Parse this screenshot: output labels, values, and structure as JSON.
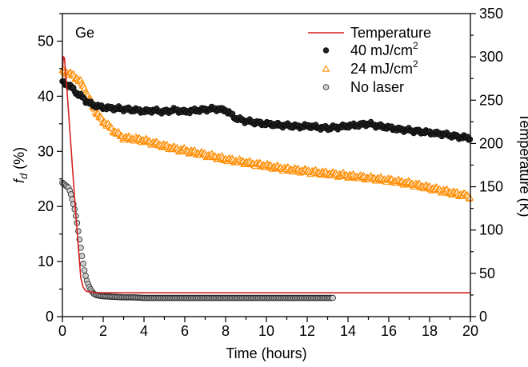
{
  "chart_data": {
    "type": "scatter",
    "annotation": "Ge",
    "xlabel": "Time (hours)",
    "ylabel_left": {
      "main": "f",
      "sub": "d",
      "rest": " (%)"
    },
    "ylabel_right": "Temperature (K)",
    "xlim": [
      0,
      20
    ],
    "ylim_left": [
      0,
      55
    ],
    "ylim_right": [
      0,
      350
    ],
    "xticks": [
      0,
      2,
      4,
      6,
      8,
      10,
      12,
      14,
      16,
      18,
      20
    ],
    "yticks_left": [
      0,
      10,
      20,
      30,
      40,
      50
    ],
    "yticks_right": [
      0,
      50,
      100,
      150,
      200,
      250,
      300,
      350
    ],
    "grid": false,
    "legend_position": "top-right",
    "legend": [
      {
        "label": "Temperature",
        "base": "Temperature",
        "sup": ""
      },
      {
        "label": "40 mJ/cm2",
        "base": "40 mJ/cm",
        "sup": "2"
      },
      {
        "label": "24 mJ/cm2",
        "base": "24 mJ/cm",
        "sup": "2"
      },
      {
        "label": "No laser",
        "base": "No laser",
        "sup": ""
      }
    ],
    "colors": {
      "temperature": "#d62020",
      "s40": "#222222",
      "s24": "#ff8c00",
      "nolaser": "#aaaaaa"
    },
    "series": [
      {
        "key": "temperature",
        "axis": "right",
        "style": "line",
        "x": [
          0,
          0.05,
          0.1,
          0.2,
          0.35,
          0.5,
          0.65,
          0.8,
          0.9,
          1.0,
          1.1,
          1.2,
          1.5,
          2,
          5,
          10,
          15,
          20
        ],
        "y": [
          285,
          300,
          299,
          270,
          220,
          170,
          120,
          75,
          45,
          35,
          31,
          29,
          28,
          27.5,
          27.5,
          27.5,
          27.5,
          27.5
        ]
      },
      {
        "key": "s40",
        "axis": "left",
        "style": "filled-circle",
        "x": [
          0,
          0.2,
          0.4,
          0.6,
          0.8,
          1.0,
          1.2,
          1.4,
          1.6,
          1.8,
          2.0,
          2.5,
          3,
          3.5,
          4,
          4.5,
          5,
          5.5,
          6,
          6.5,
          7,
          7.5,
          8,
          8.5,
          9,
          9.5,
          10,
          10.5,
          11,
          11.5,
          12,
          12.5,
          13,
          13.5,
          14,
          14.5,
          15,
          15.5,
          16,
          16.5,
          17,
          17.5,
          18,
          18.5,
          19,
          19.5,
          20
        ],
        "y": [
          42.5,
          42.2,
          41.8,
          41,
          40.2,
          39.8,
          39,
          38.6,
          38.3,
          38.1,
          38,
          37.8,
          37.7,
          37.5,
          37.3,
          37.4,
          37.2,
          37.5,
          37.2,
          37.4,
          37.6,
          37.7,
          37.5,
          36,
          35.5,
          35.2,
          35,
          34.8,
          34.7,
          34.5,
          34.6,
          34.4,
          34.2,
          34.4,
          34.6,
          34.8,
          35,
          34.6,
          34.3,
          34.0,
          33.8,
          33.6,
          33.4,
          33.2,
          32.9,
          32.6,
          32.4
        ]
      },
      {
        "key": "s24",
        "axis": "left",
        "style": "open-triangle",
        "x": [
          0,
          0.2,
          0.4,
          0.6,
          0.8,
          1.0,
          1.2,
          1.4,
          1.6,
          1.8,
          2.0,
          2.3,
          2.6,
          3.0,
          3.5,
          4,
          4.5,
          5,
          5.5,
          6,
          6.5,
          7,
          7.5,
          8,
          8.5,
          9,
          9.5,
          10,
          10.5,
          11,
          11.5,
          12,
          12.5,
          13,
          13.5,
          14,
          14.5,
          15,
          15.5,
          16,
          16.5,
          17,
          17.5,
          18,
          18.5,
          19,
          19.5,
          20
        ],
        "y": [
          44.5,
          44.3,
          44.0,
          43.6,
          43.0,
          42.0,
          40.5,
          39.0,
          37.5,
          36.3,
          35.5,
          34.5,
          33.5,
          32.5,
          32.3,
          32.0,
          31.5,
          31.0,
          30.5,
          30.2,
          29.8,
          29.4,
          29.0,
          28.6,
          28.3,
          28.0,
          27.7,
          27.4,
          27.1,
          26.8,
          26.6,
          26.4,
          26.2,
          26.0,
          25.8,
          25.6,
          25.4,
          25.2,
          25.0,
          24.8,
          24.5,
          24.2,
          23.8,
          23.4,
          23.0,
          22.6,
          22.2,
          21.8
        ]
      },
      {
        "key": "nolaser",
        "axis": "left",
        "style": "open-circle",
        "x": [
          0,
          0.1,
          0.2,
          0.3,
          0.4,
          0.5,
          0.6,
          0.7,
          0.8,
          0.9,
          1.0,
          1.1,
          1.2,
          1.3,
          1.4,
          1.5,
          1.6,
          1.8,
          2.0,
          2.5,
          3,
          3.5,
          4,
          4.5,
          5,
          5.5,
          6,
          6.5,
          7,
          7.5,
          8,
          8.5,
          9,
          9.5,
          10,
          10.5,
          11,
          11.5,
          12,
          12.5,
          13,
          13.3
        ],
        "y": [
          24.3,
          24.0,
          23.7,
          23.4,
          22.5,
          21.0,
          19.5,
          17.5,
          15.0,
          12.5,
          10.0,
          8.0,
          6.5,
          5.5,
          4.8,
          4.3,
          4.0,
          3.8,
          3.7,
          3.6,
          3.5,
          3.5,
          3.4,
          3.4,
          3.4,
          3.4,
          3.4,
          3.4,
          3.4,
          3.4,
          3.4,
          3.4,
          3.4,
          3.4,
          3.4,
          3.4,
          3.4,
          3.4,
          3.4,
          3.4,
          3.4,
          3.4
        ]
      }
    ]
  }
}
